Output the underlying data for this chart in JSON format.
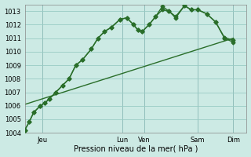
{
  "title": "",
  "xlabel": "Pression niveau de la mer( hPa )",
  "ylabel": "",
  "bg_color": "#cceae4",
  "grid_color": "#99ccc4",
  "line_color": "#2a6e2a",
  "marker": "D",
  "markersize": 2.5,
  "linewidth": 1.0,
  "ylim": [
    1004,
    1013.5
  ],
  "yticks": [
    1004,
    1005,
    1006,
    1007,
    1008,
    1009,
    1010,
    1011,
    1012,
    1013
  ],
  "ytick_fontsize": 6,
  "xtick_fontsize": 6,
  "xlabel_fontsize": 7,
  "xlim": [
    0,
    100
  ],
  "vline_positions": [
    8,
    44,
    54,
    78,
    94
  ],
  "vline_color": "#4a4a6a",
  "xtick_positions": [
    8,
    44,
    54,
    78,
    94
  ],
  "xtick_labels": [
    "Jeu",
    "Lun",
    "Ven",
    "Sam",
    "Dim"
  ],
  "series1_x": [
    0,
    2,
    4,
    7,
    9,
    11,
    14,
    17,
    20,
    23,
    26,
    30,
    33,
    36,
    39,
    43,
    46,
    49,
    51,
    53,
    56,
    59,
    62,
    65,
    68,
    72,
    75,
    78,
    82,
    86,
    90,
    94
  ],
  "series1_y": [
    1004.2,
    1004.8,
    1005.5,
    1006.0,
    1006.2,
    1006.5,
    1007.0,
    1007.5,
    1008.0,
    1009.0,
    1009.4,
    1010.2,
    1011.0,
    1011.5,
    1011.8,
    1012.4,
    1012.5,
    1012.0,
    1011.6,
    1011.5,
    1012.0,
    1012.6,
    1013.1,
    1013.0,
    1012.6,
    1013.4,
    1013.1,
    1013.1,
    1012.8,
    1012.2,
    1011.0,
    1010.7
  ],
  "series2_x": [
    0,
    2,
    4,
    7,
    9,
    11,
    14,
    17,
    20,
    23,
    26,
    30,
    33,
    36,
    39,
    43,
    46,
    49,
    51,
    53,
    56,
    59,
    62,
    65,
    68,
    72,
    75,
    78,
    82,
    86,
    90,
    94
  ],
  "series2_y": [
    1004.2,
    1004.8,
    1005.5,
    1006.0,
    1006.2,
    1006.5,
    1007.0,
    1007.5,
    1008.0,
    1009.0,
    1009.4,
    1010.2,
    1011.0,
    1011.5,
    1011.8,
    1012.4,
    1012.5,
    1012.0,
    1011.6,
    1011.5,
    1012.0,
    1012.6,
    1013.35,
    1013.0,
    1012.5,
    1013.4,
    1013.1,
    1013.1,
    1012.8,
    1012.2,
    1011.05,
    1010.85
  ],
  "series3_x": [
    0,
    94
  ],
  "series3_y": [
    1006.1,
    1011.0
  ]
}
